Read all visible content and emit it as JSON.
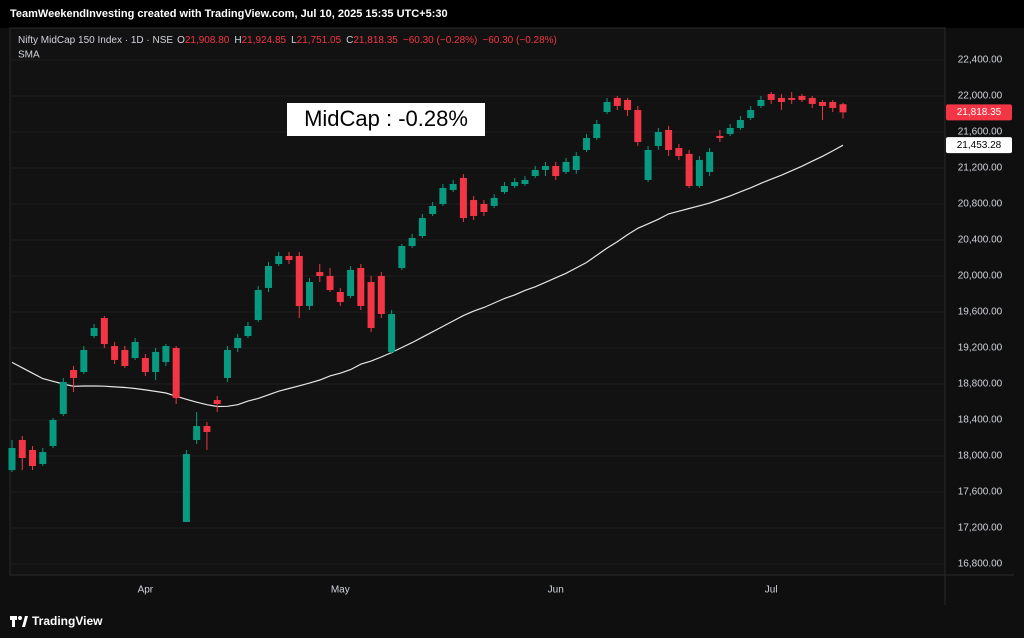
{
  "header": {
    "credit": "TeamWeekendInvesting created with TradingView.com, Jul 10, 2025 15:35 UTC+5:30"
  },
  "footer": {
    "brand": "TradingView"
  },
  "chart_data": {
    "type": "candlestick",
    "title": "Nifty MidCap 150 Index · 1D · NSE",
    "ohlc_legend": [
      {
        "key": "O",
        "label": "21,908.80"
      },
      {
        "key": "H",
        "label": "21,924.85"
      },
      {
        "key": "L",
        "label": "21,751.05"
      },
      {
        "key": "C",
        "label": "21,818.35"
      }
    ],
    "change_labels": [
      "−60.30 (−0.28%)",
      "−60.30 (−0.28%)"
    ],
    "annotation": "MidCap : -0.28%",
    "categories": [
      null,
      null,
      null,
      null,
      null,
      null,
      null,
      null,
      null,
      null,
      null,
      null,
      null,
      "Apr",
      null,
      null,
      null,
      null,
      null,
      null,
      null,
      null,
      null,
      null,
      null,
      null,
      null,
      null,
      null,
      null,
      null,
      null,
      "May",
      null,
      null,
      null,
      null,
      null,
      null,
      null,
      null,
      null,
      null,
      null,
      null,
      null,
      null,
      null,
      null,
      null,
      null,
      null,
      null,
      "Jun",
      null,
      null,
      null,
      null,
      null,
      null,
      null,
      null,
      null,
      null,
      null,
      null,
      null,
      null,
      null,
      null,
      null,
      null,
      null,
      null,
      "Jul",
      null,
      null,
      null,
      null,
      null,
      null,
      null
    ],
    "up_color": "#089981",
    "down_color": "#f23645",
    "open": [
      17844,
      18178,
      18067,
      17911,
      18111,
      18467,
      18956,
      18933,
      19333,
      19533,
      19222,
      19178,
      19089,
      19089,
      18933,
      19044,
      19200,
      17267,
      18178,
      18333,
      18622,
      18867,
      19200,
      19333,
      19511,
      19867,
      20133,
      20222,
      20222,
      19667,
      20044,
      20000,
      19822,
      19778,
      20089,
      19933,
      20000,
      19156,
      20089,
      20333,
      20444,
      20689,
      20800,
      20956,
      21089,
      20844,
      20800,
      20778,
      20933,
      21000,
      21022,
      21111,
      21178,
      21222,
      21156,
      21178,
      21400,
      21533,
      21822,
      21978,
      21956,
      21844,
      21067,
      21444,
      21622,
      21422,
      21356,
      21000,
      21156,
      21556,
      21578,
      21644,
      21756,
      21889,
      22022,
      21978,
      21978,
      22000,
      21978,
      21933,
      21933,
      21908.8
    ],
    "high": [
      18178,
      18222,
      18111,
      18089,
      18422,
      18867,
      19000,
      19222,
      19467,
      19556,
      19267,
      19222,
      19311,
      19133,
      19200,
      19244,
      19222,
      18067,
      18489,
      18378,
      18667,
      19222,
      19356,
      19489,
      19889,
      20156,
      20267,
      20267,
      20267,
      19978,
      20133,
      20089,
      19867,
      20111,
      20133,
      20000,
      20044,
      19622,
      20356,
      20467,
      20689,
      20822,
      21022,
      21067,
      21133,
      20889,
      20844,
      20911,
      21044,
      21089,
      21111,
      21222,
      21267,
      21267,
      21311,
      21378,
      21578,
      21733,
      21978,
      22000,
      21978,
      21889,
      21444,
      21644,
      21667,
      21467,
      21400,
      21333,
      21422,
      21622,
      21689,
      21778,
      21889,
      22000,
      22044,
      22022,
      22044,
      22022,
      22000,
      21956,
      21956,
      21924.85
    ],
    "low": [
      17822,
      17844,
      17844,
      17889,
      18089,
      18444,
      18711,
      18911,
      19311,
      19200,
      19022,
      18978,
      19067,
      18889,
      18844,
      19000,
      18578,
      17267,
      18133,
      18067,
      18489,
      18822,
      19156,
      19311,
      19489,
      19822,
      20111,
      20133,
      19533,
      19622,
      19933,
      19822,
      19667,
      19756,
      19622,
      19378,
      19533,
      19133,
      20067,
      20311,
      20422,
      20667,
      20778,
      20933,
      20600,
      20622,
      20667,
      20756,
      20911,
      20978,
      21000,
      21089,
      21111,
      21067,
      21133,
      21133,
      21378,
      21511,
      21800,
      21844,
      21778,
      21444,
      21044,
      21400,
      21333,
      21289,
      20978,
      20978,
      21111,
      21489,
      21556,
      21622,
      21733,
      21867,
      21911,
      21844,
      21911,
      21933,
      21867,
      21733,
      21822,
      21751.05
    ],
    "close": [
      18089,
      17978,
      17889,
      18044,
      18400,
      18822,
      18867,
      19178,
      19422,
      19244,
      19067,
      19000,
      19267,
      18933,
      19156,
      19222,
      18644,
      18022,
      18333,
      18267,
      18578,
      19178,
      19311,
      19444,
      19844,
      20111,
      20222,
      20178,
      19667,
      19933,
      20000,
      19844,
      19711,
      20067,
      19667,
      19422,
      19578,
      19578,
      20333,
      20422,
      20644,
      20778,
      20978,
      21022,
      20644,
      20667,
      20711,
      20867,
      21000,
      21044,
      21067,
      21178,
      21222,
      21111,
      21267,
      21333,
      21533,
      21689,
      21933,
      21889,
      21844,
      21489,
      21400,
      21600,
      21400,
      21333,
      21000,
      21289,
      21378,
      21533,
      21644,
      21733,
      21844,
      21956,
      21956,
      21933,
      21956,
      21956,
      21911,
      21889,
      21867,
      21818.35
    ],
    "overlays": [
      {
        "name": "SMA",
        "color": "#e6e6e6",
        "values": [
          19040,
          18980,
          18920,
          18860,
          18830,
          18800,
          18775,
          18778,
          18778,
          18776,
          18768,
          18761,
          18750,
          18735,
          18718,
          18700,
          18665,
          18630,
          18598,
          18570,
          18550,
          18552,
          18570,
          18610,
          18640,
          18680,
          18720,
          18750,
          18780,
          18810,
          18845,
          18890,
          18920,
          18960,
          19020,
          19055,
          19100,
          19150,
          19205,
          19260,
          19320,
          19380,
          19440,
          19500,
          19560,
          19610,
          19650,
          19700,
          19750,
          19790,
          19840,
          19880,
          19930,
          19980,
          20030,
          20090,
          20150,
          20230,
          20310,
          20380,
          20460,
          20530,
          20580,
          20630,
          20690,
          20720,
          20750,
          20780,
          20810,
          20850,
          20890,
          20935,
          20980,
          21030,
          21075,
          21120,
          21170,
          21220,
          21275,
          21330,
          21390,
          21453.28
        ]
      }
    ],
    "price_badges": [
      {
        "value": 21818.35,
        "label": "21,818.35",
        "color": "#f23645",
        "text_color": "#ffffff"
      },
      {
        "value": 21453.28,
        "label": "21,453.28",
        "color": "#ffffff",
        "text_color": "#000000"
      }
    ],
    "ylim": [
      16678,
      22733
    ],
    "yticks": [
      {
        "value": 22400,
        "label": "22,400.00"
      },
      {
        "value": 22000,
        "label": "22,000.00"
      },
      {
        "value": 21600,
        "label": "21,600.00"
      },
      {
        "value": 21200,
        "label": "21,200.00"
      },
      {
        "value": 20800,
        "label": "20,800.00"
      },
      {
        "value": 20400,
        "label": "20,400.00"
      },
      {
        "value": 20000,
        "label": "20,000.00"
      },
      {
        "value": 19600,
        "label": "19,600.00"
      },
      {
        "value": 19200,
        "label": "19,200.00"
      },
      {
        "value": 18800,
        "label": "18,800.00"
      },
      {
        "value": 18400,
        "label": "18,400.00"
      },
      {
        "value": 18000,
        "label": "18,000.00"
      },
      {
        "value": 17600,
        "label": "17,600.00"
      },
      {
        "value": 17200,
        "label": "17,200.00"
      },
      {
        "value": 16800,
        "label": "16,800.00"
      }
    ],
    "grid": true
  }
}
